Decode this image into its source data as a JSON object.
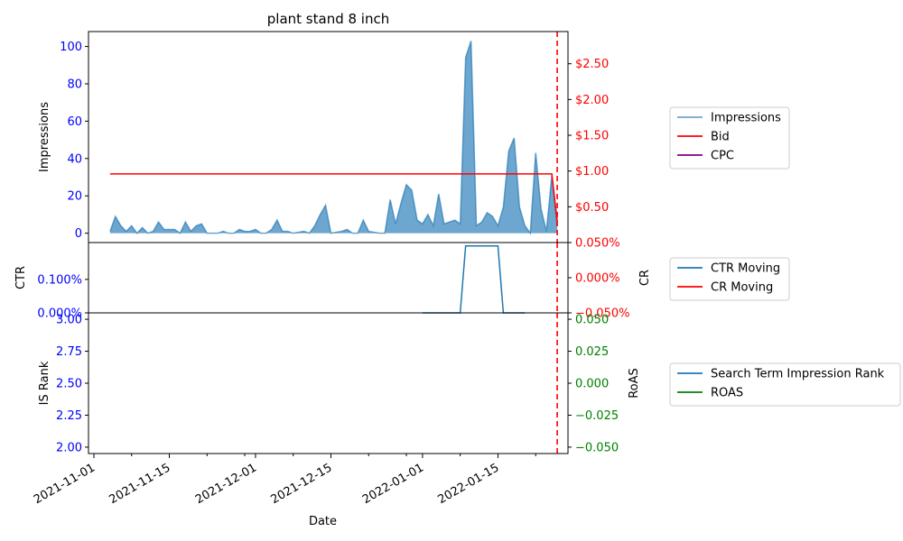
{
  "colors": {
    "impressions": "#1f77b4",
    "bid": "#ff0000",
    "cpc": "#800080",
    "ctr": "#1f77b4",
    "cr": "#ff0000",
    "rank": "#1f77b4",
    "roas": "#008000",
    "left_tick": "#0000ff",
    "right_tick_red": "#ff0000",
    "right_tick_green": "#008000",
    "vline": "#ff0000"
  },
  "chart_data": [
    {
      "type": "area",
      "title": "plant stand 8 inch",
      "ylabel": "Impressions",
      "ylim": [
        -5,
        108
      ],
      "y_ticks": [
        0,
        20,
        40,
        60,
        80,
        100
      ],
      "y_tick_labels": [
        "0",
        "20",
        "40",
        "60",
        "80",
        "100"
      ],
      "y2lim": [
        0,
        2.95
      ],
      "y2_ticks": [
        0.5,
        1.0,
        1.5,
        2.0,
        2.5
      ],
      "y2_tick_labels": [
        "$0.50",
        "$1.00",
        "$1.50",
        "$2.00",
        "$2.50"
      ],
      "series": [
        {
          "name": "Impressions",
          "points": [
            [
              3,
              1
            ],
            [
              4,
              9
            ],
            [
              5,
              4
            ],
            [
              6,
              1
            ],
            [
              7,
              4
            ],
            [
              8,
              0
            ],
            [
              9,
              3
            ],
            [
              10,
              0
            ],
            [
              11,
              1
            ],
            [
              12,
              6
            ],
            [
              13,
              2
            ],
            [
              14,
              2
            ],
            [
              15,
              2
            ],
            [
              16,
              0
            ],
            [
              17,
              6
            ],
            [
              18,
              1
            ],
            [
              19,
              4
            ],
            [
              20,
              5
            ],
            [
              21,
              0
            ],
            [
              22,
              0
            ],
            [
              23,
              0
            ],
            [
              24,
              1
            ],
            [
              25,
              0
            ],
            [
              26,
              0
            ],
            [
              27,
              2
            ],
            [
              28,
              1
            ],
            [
              29,
              1
            ],
            [
              30,
              2
            ],
            [
              31,
              0
            ],
            [
              32,
              0
            ],
            [
              33,
              2
            ],
            [
              34,
              7
            ],
            [
              35,
              1
            ],
            [
              36,
              1
            ],
            [
              37,
              0
            ],
            [
              38,
              0.5
            ],
            [
              39,
              1
            ],
            [
              40,
              0
            ],
            [
              41,
              4
            ],
            [
              42,
              10
            ],
            [
              43,
              15
            ],
            [
              44,
              0
            ],
            [
              45,
              0.5
            ],
            [
              46,
              1
            ],
            [
              47,
              2
            ],
            [
              48,
              0
            ],
            [
              49,
              0
            ],
            [
              50,
              7
            ],
            [
              51,
              1
            ],
            [
              52,
              0.5
            ],
            [
              53,
              0
            ],
            [
              54,
              0
            ],
            [
              55,
              18
            ],
            [
              56,
              5
            ],
            [
              57,
              16
            ],
            [
              58,
              26
            ],
            [
              59,
              23
            ],
            [
              60,
              7
            ],
            [
              61,
              5
            ],
            [
              62,
              10
            ],
            [
              63,
              4
            ],
            [
              64,
              21
            ],
            [
              65,
              5
            ],
            [
              66,
              6
            ],
            [
              67,
              7
            ],
            [
              68,
              5
            ],
            [
              69,
              94
            ],
            [
              70,
              103
            ],
            [
              71,
              4
            ],
            [
              72,
              6
            ],
            [
              73,
              11
            ],
            [
              74,
              9
            ],
            [
              75,
              4
            ],
            [
              76,
              14
            ],
            [
              77,
              44
            ],
            [
              78,
              51
            ],
            [
              79,
              14
            ],
            [
              80,
              4
            ],
            [
              81,
              0
            ],
            [
              82,
              43
            ],
            [
              83,
              13
            ],
            [
              84,
              1
            ],
            [
              85,
              31
            ],
            [
              86,
              4
            ]
          ]
        },
        {
          "name": "Bid",
          "points": [
            [
              3,
              0.96
            ],
            [
              85,
              0.96
            ],
            [
              86,
              0.3
            ]
          ]
        },
        {
          "name": "CPC",
          "points": []
        }
      ],
      "legend": [
        "Impressions",
        "Bid",
        "CPC"
      ],
      "legend_location": "right"
    },
    {
      "type": "line",
      "ylabel": "CTR",
      "y2label": "CR",
      "ylim": [
        0,
        0.0021
      ],
      "y_ticks": [
        0,
        0.001
      ],
      "y_tick_labels": [
        "0.000%",
        "0.100%"
      ],
      "y2lim": [
        -0.0005,
        0.0005
      ],
      "y2_ticks": [
        -0.0005,
        0,
        0.0005
      ],
      "y2_tick_labels": [
        "−0.050%",
        "0.000%",
        "0.050%"
      ],
      "series": [
        {
          "name": "CTR Moving",
          "points": [
            [
              61,
              0
            ],
            [
              68,
              0
            ],
            [
              69,
              0.002
            ],
            [
              75,
              0.002
            ],
            [
              76,
              0
            ],
            [
              80,
              0
            ]
          ]
        },
        {
          "name": "CR Moving",
          "points": []
        }
      ],
      "legend": [
        "CTR Moving",
        "CR Moving"
      ],
      "legend_location": "right"
    },
    {
      "type": "line",
      "ylabel": "IS Rank",
      "y2label": "RoAS",
      "xlabel": "Date",
      "ylim": [
        1.95,
        3.05
      ],
      "y_ticks": [
        2.0,
        2.25,
        2.5,
        2.75,
        3.0
      ],
      "y_tick_labels": [
        "2.00",
        "2.25",
        "2.50",
        "2.75",
        "3.00"
      ],
      "y2lim": [
        -0.055,
        0.055
      ],
      "y2_ticks": [
        -0.05,
        -0.025,
        0,
        0.025,
        0.05
      ],
      "y2_tick_labels": [
        "−0.050",
        "−0.025",
        "0.000",
        "0.025",
        "0.050"
      ],
      "x_major_ticks": [
        0,
        14,
        30,
        44,
        61,
        75
      ],
      "x_tick_labels": [
        "2021-11-01",
        "2021-11-15",
        "2021-12-01",
        "2021-12-15",
        "2022-01-01",
        "2022-01-15"
      ],
      "x_minor_ticks": [
        7,
        21,
        28,
        37,
        51,
        58,
        68,
        82
      ],
      "series": [
        {
          "name": "Search Term Impression Rank",
          "points": []
        },
        {
          "name": "ROAS",
          "points": []
        }
      ],
      "legend": [
        "Search Term Impression Rank",
        "ROAS"
      ],
      "legend_location": "right"
    }
  ],
  "x_axis": {
    "unit": "days since 2021-11-01",
    "range": [
      -1,
      88
    ],
    "vline_at": 86
  }
}
